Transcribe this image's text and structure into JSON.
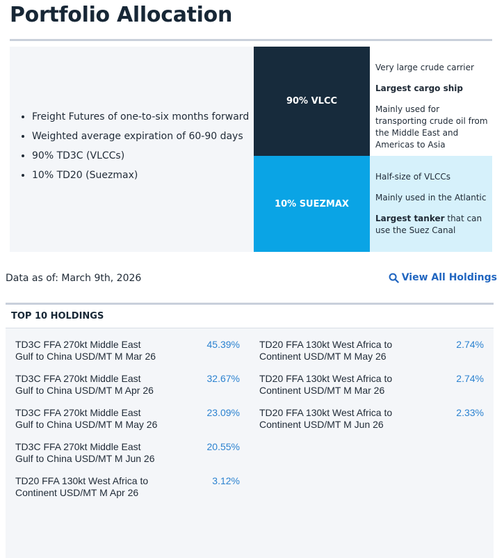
{
  "page": {
    "title": "Portfolio Allocation"
  },
  "allocation": {
    "bullets": [
      "Freight Futures of one-to-six months forward",
      "Weighted average expiration of 60-90 days",
      "90% TD3C (VLCCs)",
      "10% TD20 (Suezmax)"
    ],
    "segments": [
      {
        "label": "90% VLCC",
        "share": 0.9,
        "color": "#172b3c",
        "desc": [
          "Very large crude carrier",
          "Largest cargo ship",
          "Mainly used for transporting crude oil from the Middle East and Americas to Asia"
        ]
      },
      {
        "label": "10% SUEZMAX",
        "share": 0.1,
        "color": "#0aa4e5",
        "desc_intro": [
          "Half-size of VLCCs",
          "Mainly used in the Atlantic"
        ],
        "desc_bold": "Largest tanker",
        "desc_rest": " that can use the Suez Canal"
      }
    ]
  },
  "as_of": "Data as of: March 9th, 2026",
  "view_all": {
    "label": "View All Holdings",
    "icon": "search-icon",
    "color": "#2166c0"
  },
  "holdings": {
    "heading": "TOP 10 HOLDINGS",
    "left": [
      {
        "name": "TD3C FFA 270kt Middle East Gulf to China USD/MT M Mar 26",
        "pct": "45.39%"
      },
      {
        "name": "TD3C FFA 270kt Middle East Gulf to China USD/MT M Apr 26",
        "pct": "32.67%"
      },
      {
        "name": "TD3C FFA 270kt Middle East Gulf to China USD/MT M May 26",
        "pct": "23.09%"
      },
      {
        "name": "TD3C FFA 270kt Middle East Gulf to China USD/MT M Jun 26",
        "pct": "20.55%"
      },
      {
        "name": "TD20 FFA 130kt West Africa to Continent USD/MT M Apr 26",
        "pct": "3.12%"
      }
    ],
    "right": [
      {
        "name": "TD20 FFA 130kt West Africa to Continent USD/MT M May 26",
        "pct": "2.74%"
      },
      {
        "name": "TD20 FFA 130kt West Africa to Continent USD/MT M Mar 26",
        "pct": "2.74%"
      },
      {
        "name": "TD20 FFA 130kt West Africa to Continent USD/MT M Jun 26",
        "pct": "2.33%"
      }
    ]
  }
}
